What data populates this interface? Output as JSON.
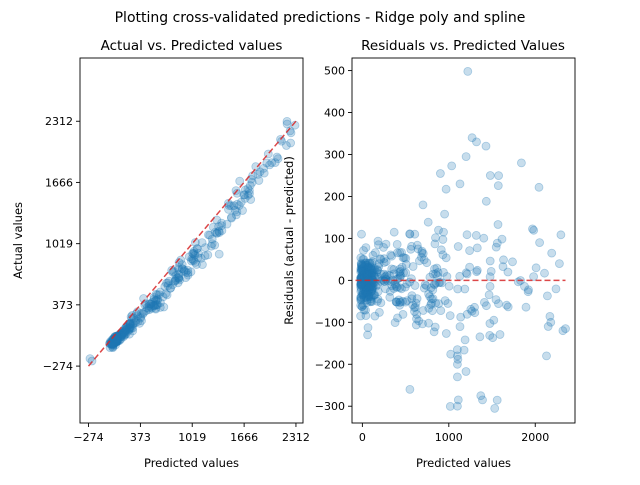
{
  "figure": {
    "suptitle": "Plotting cross-validated predictions - Ridge poly and spline"
  },
  "colors": {
    "points": "#1f77b4",
    "reference_line": "#d62728",
    "point_opacity": 0.25
  },
  "chart_data": [
    {
      "type": "scatter",
      "title": "Actual vs. Predicted values",
      "xlabel": "Predicted values",
      "ylabel": "Actual values",
      "xlim": [
        -380,
        2400
      ],
      "ylim": [
        -875,
        2980
      ],
      "xticks": [
        -274,
        373,
        1019,
        1666,
        2312
      ],
      "yticks": [
        -274,
        373,
        1019,
        1666,
        2312
      ],
      "grid": false,
      "legend": "none",
      "reference_line": {
        "x": [
          -274,
          2312
        ],
        "y": [
          -274,
          2312
        ],
        "style": "dashed"
      },
      "segments": [
        {
          "x": [
            10,
            250
          ],
          "y": [
            -60,
            160
          ],
          "noise": 25,
          "count": 70
        },
        {
          "x": [
            -10,
            90
          ],
          "y": [
            -40,
            20
          ],
          "noise": 18,
          "count": 60
        },
        {
          "x": [
            250,
            600
          ],
          "y": [
            160,
            430
          ],
          "noise": 40,
          "count": 55
        },
        {
          "x": [
            600,
            1100
          ],
          "y": [
            430,
            930
          ],
          "noise": 60,
          "count": 60
        },
        {
          "x": [
            1100,
            1650
          ],
          "y": [
            930,
            1520
          ],
          "noise": 90,
          "count": 45
        },
        {
          "x": [
            1650,
            2250
          ],
          "y": [
            1520,
            2150
          ],
          "noise": 70,
          "count": 30
        }
      ],
      "explicit_points": [
        {
          "x": -255,
          "y": -195
        },
        {
          "x": -230,
          "y": -220
        },
        {
          "x": 2300,
          "y": 2270
        },
        {
          "x": 2200,
          "y": 2310
        },
        {
          "x": 2250,
          "y": 2190
        },
        {
          "x": 2120,
          "y": 2120
        }
      ]
    },
    {
      "type": "scatter",
      "title": "Residuals vs. Predicted Values",
      "xlabel": "Predicted values",
      "ylabel": "Residuals (actual - predicted)",
      "xlim": [
        -120,
        2460
      ],
      "ylim": [
        -340,
        530
      ],
      "xticks": [
        0,
        1000,
        2000
      ],
      "yticks": [
        -300,
        -200,
        -100,
        0,
        100,
        200,
        300,
        400,
        500
      ],
      "grid": false,
      "legend": "none",
      "reference_line": {
        "x": [
          -80,
          2350
        ],
        "y": [
          0,
          0
        ],
        "style": "dashed"
      },
      "clusters": [
        {
          "x": [
            -20,
            120
          ],
          "mean": 0,
          "noise": 28,
          "count": 200
        },
        {
          "x": [
            120,
            450
          ],
          "mean": 0,
          "noise": 45,
          "count": 90
        },
        {
          "x": [
            450,
            900
          ],
          "mean": 0,
          "noise": 65,
          "count": 80
        },
        {
          "x": [
            900,
            1600
          ],
          "mean": 20,
          "noise": 110,
          "count": 70
        },
        {
          "x": [
            1600,
            2350
          ],
          "mean": 10,
          "noise": 90,
          "count": 22
        }
      ],
      "explicit_points": [
        {
          "x": 1220,
          "y": 498
        },
        {
          "x": 1270,
          "y": 340
        },
        {
          "x": 1320,
          "y": 330
        },
        {
          "x": 1200,
          "y": 295
        },
        {
          "x": 1430,
          "y": 320
        },
        {
          "x": 1480,
          "y": 250
        },
        {
          "x": 1840,
          "y": 280
        },
        {
          "x": 1130,
          "y": 230
        },
        {
          "x": 550,
          "y": 110
        },
        {
          "x": 1100,
          "y": -300
        },
        {
          "x": 1110,
          "y": -285
        },
        {
          "x": 1370,
          "y": -275
        },
        {
          "x": 1390,
          "y": -285
        },
        {
          "x": 550,
          "y": -260
        },
        {
          "x": 1100,
          "y": -230
        },
        {
          "x": 1100,
          "y": -200
        },
        {
          "x": 1100,
          "y": -180
        },
        {
          "x": 1100,
          "y": -165
        },
        {
          "x": 2350,
          "y": -115
        },
        {
          "x": 2320,
          "y": -120
        },
        {
          "x": 2130,
          "y": -180
        },
        {
          "x": 2180,
          "y": -100
        },
        {
          "x": 2150,
          "y": -110
        },
        {
          "x": 2190,
          "y": 65
        },
        {
          "x": 2050,
          "y": 90
        },
        {
          "x": 2010,
          "y": 30
        },
        {
          "x": 2280,
          "y": 40
        },
        {
          "x": -20,
          "y": -85
        },
        {
          "x": -10,
          "y": 110
        },
        {
          "x": 60,
          "y": -130
        }
      ]
    }
  ]
}
